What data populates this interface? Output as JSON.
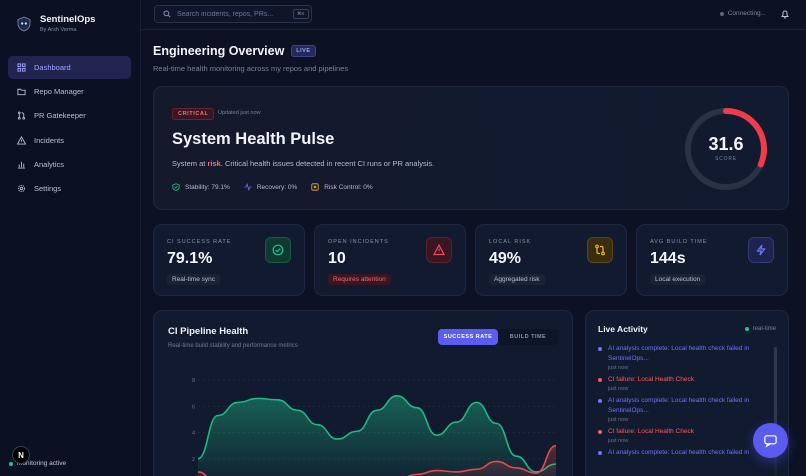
{
  "brand": {
    "title": "SentinelOps",
    "subtitle": "By Arsh Verma"
  },
  "nav": [
    {
      "label": "Dashboard",
      "icon": "grid-icon",
      "active": true
    },
    {
      "label": "Repo Manager",
      "icon": "folder-icon"
    },
    {
      "label": "PR Gatekeeper",
      "icon": "git-pull-request-icon"
    },
    {
      "label": "Incidents",
      "icon": "alert-triangle-icon"
    },
    {
      "label": "Analytics",
      "icon": "bar-chart-icon"
    },
    {
      "label": "Settings",
      "icon": "gear-icon"
    }
  ],
  "sidebar_status": "monitoring active",
  "n_badge": "N",
  "search": {
    "placeholder": "Search incidents, repos, PRs...",
    "shortcut": "⌘K"
  },
  "connection": "Connecting...",
  "page": {
    "title": "Engineering Overview",
    "badge": "LIVE",
    "subtitle": "Real-time health monitoring across my repos and pipelines"
  },
  "hero": {
    "status": "CRITICAL",
    "updated": "Updated just now",
    "title": "System Health Pulse",
    "desc_prefix": "System at ",
    "desc_risk": "risk",
    "desc_suffix": ". Critical health issues detected in recent CI runs or PR analysis.",
    "metrics": [
      {
        "label": "Stability: 79.1%",
        "icon": "shield-check-icon"
      },
      {
        "label": "Recovery: 0%",
        "icon": "activity-icon"
      },
      {
        "label": "Risk Control: 0%",
        "icon": "shield-x-icon"
      }
    ],
    "score": "31.6",
    "score_label": "SCORE",
    "score_fraction": 0.316
  },
  "stats": [
    {
      "label": "CI SUCCESS RATE",
      "value": "79.1%",
      "tag": "Real-time sync",
      "icon": "check-circle-icon",
      "color": "#22c58b"
    },
    {
      "label": "OPEN INCIDENTS",
      "value": "10",
      "tag": "Requires attention",
      "icon": "alert-triangle-icon",
      "color": "#ef4b5b"
    },
    {
      "label": "LOCAL RISK",
      "value": "49%",
      "tag": "Aggregated risk",
      "icon": "git-compare-icon",
      "color": "#f0b42a"
    },
    {
      "label": "AVG BUILD TIME",
      "value": "144s",
      "tag": "Local execution",
      "icon": "lightning-icon",
      "color": "#6f73ff"
    }
  ],
  "pipeline": {
    "title": "CI Pipeline Health",
    "subtitle": "Real-time build stability and performance metrics",
    "toggle": [
      "SUCCESS RATE",
      "BUILD TIME"
    ]
  },
  "chart_data": {
    "type": "area",
    "yticks": [
      "8",
      "6",
      "4",
      "2"
    ],
    "ylim": [
      0,
      9
    ],
    "series": [
      {
        "color": "#1fb885",
        "values": [
          2.0,
          5.3,
          6.3,
          6.6,
          6.5,
          5.7,
          4.6,
          3.5,
          4.1,
          5.7,
          6.8,
          5.9,
          3.8,
          4.8,
          6.3,
          4.7,
          2.2,
          1.0,
          1.6
        ]
      },
      {
        "color": "#e5484d",
        "values": [
          1.0,
          0.0,
          0.4,
          0.6,
          0.6,
          0.4,
          0.4,
          0.6,
          0.6,
          0.4,
          0.4,
          0.8,
          1.1,
          1.0,
          1.2,
          1.8,
          1.3,
          0.9,
          3.0
        ]
      }
    ]
  },
  "activity": {
    "title": "Live Activity",
    "realtime": "real-time",
    "items": [
      {
        "text": "AI analysis complete: Local health check failed in SentinelOps...",
        "time": "just now",
        "color": "#6f73ff"
      },
      {
        "text": "CI failure: Local Health Check",
        "time": "just now",
        "color": "#ff5b5b"
      },
      {
        "text": "AI analysis complete: Local health check failed in SentinelOps...",
        "time": "just now",
        "color": "#6f73ff"
      },
      {
        "text": "CI failure: Local Health Check",
        "time": "just now",
        "color": "#ff5b5b"
      },
      {
        "text": "AI analysis complete: Local health check failed in",
        "time": "",
        "color": "#6f73ff"
      }
    ]
  }
}
